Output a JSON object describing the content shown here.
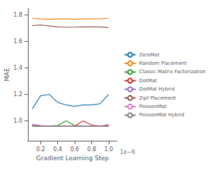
{
  "chart_data": {
    "type": "line",
    "title": "",
    "x_label": "Gradient Learning Step",
    "y_label": "MAE",
    "annotations": [
      "1e−6"
    ],
    "xlim": [
      5e-08,
      1.1e-06
    ],
    "ylim": [
      0.85,
      1.85
    ],
    "xticks": [
      {
        "value": 2e-07,
        "label": "0.2"
      },
      {
        "value": 4e-07,
        "label": "0.4"
      },
      {
        "value": 6e-07,
        "label": "0.6"
      },
      {
        "value": 8e-07,
        "label": "0.8"
      },
      {
        "value": 1e-06,
        "label": "1.0"
      }
    ],
    "yticks": [
      {
        "value": 1.0,
        "label": "1.0"
      },
      1.2,
      1.4,
      1.6,
      1.8
    ],
    "grid": false,
    "legend": "right",
    "x": [
      1e-07,
      2e-07,
      3e-07,
      4e-07,
      5e-07,
      6e-07,
      7e-07,
      8e-07,
      9e-07,
      1e-06
    ],
    "series": [
      {
        "name": "ZeroMat",
        "color": "#1f77b4",
        "values": [
          1.09,
          1.19,
          1.2,
          1.14,
          1.12,
          1.11,
          1.12,
          1.12,
          1.13,
          1.2
        ]
      },
      {
        "name": "Random Placement",
        "color": "#ff7f0e",
        "values": [
          1.775,
          1.77,
          1.768,
          1.77,
          1.77,
          1.768,
          1.77,
          1.77,
          1.772,
          1.775
        ]
      },
      {
        "name": "Classic Matrix Factorization",
        "color": "#2ca02c",
        "values": [
          0.96,
          0.958,
          0.96,
          0.965,
          1.0,
          0.965,
          0.96,
          0.958,
          0.96,
          0.96
        ]
      },
      {
        "name": "DotMat",
        "color": "#d62728",
        "values": [
          0.965,
          0.962,
          0.96,
          0.958,
          0.96,
          0.96,
          1.0,
          0.968,
          0.96,
          0.97
        ]
      },
      {
        "name": "DotMat Hybrid",
        "color": "#9467bd",
        "values": [
          0.975,
          0.965,
          0.96,
          0.96,
          0.96,
          0.96,
          0.96,
          0.96,
          0.96,
          0.96
        ]
      },
      {
        "name": "Zipf Placement",
        "color": "#8c564b",
        "values": [
          1.72,
          1.725,
          1.718,
          1.71,
          1.708,
          1.708,
          1.71,
          1.71,
          1.71,
          1.705
        ]
      },
      {
        "name": "PoissonMat",
        "color": "#e377c2",
        "values": [
          0.97,
          0.962,
          0.958,
          0.958,
          0.96,
          0.96,
          0.958,
          0.958,
          0.958,
          0.96
        ]
      },
      {
        "name": "PoissonMat Hybrid",
        "color": "#7f7f7f",
        "values": [
          0.962,
          0.96,
          0.958,
          0.96,
          0.96,
          0.958,
          0.96,
          0.96,
          0.96,
          0.96
        ]
      }
    ]
  }
}
